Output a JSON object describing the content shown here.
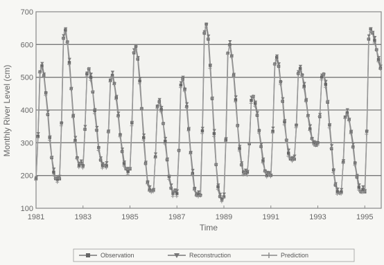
{
  "chart_data": {
    "type": "line",
    "xlabel": "Time",
    "ylabel": "Monthly River Level (cm)",
    "xlim": [
      1981,
      1995.7
    ],
    "ylim": [
      100,
      700
    ],
    "x_ticks": [
      "1981",
      "1983",
      "1985",
      "1987",
      "1989",
      "1991",
      "1993",
      "1995"
    ],
    "y_ticks": [
      "100",
      "200",
      "300",
      "400",
      "500",
      "600",
      "700"
    ],
    "grid": "horizontal",
    "legend_position": "bottom",
    "series": [
      {
        "name": "Observation",
        "marker": "square"
      },
      {
        "name": "Reconstruction",
        "marker": "triangle"
      },
      {
        "name": "Prediction",
        "marker": "plus"
      }
    ],
    "annual_cycle": [
      {
        "year": 1981,
        "peak": 540,
        "trough": 190
      },
      {
        "year": 1982,
        "peak": 650,
        "trough": 230
      },
      {
        "year": 1983,
        "peak": 530,
        "trough": 230
      },
      {
        "year": 1984,
        "peak": 510,
        "trough": 220
      },
      {
        "year": 1985,
        "peak": 600,
        "trough": 155
      },
      {
        "year": 1986,
        "peak": 430,
        "trough": 145
      },
      {
        "year": 1987,
        "peak": 500,
        "trough": 140
      },
      {
        "year": 1988,
        "peak": 670,
        "trough": 135
      },
      {
        "year": 1989,
        "peak": 605,
        "trough": 210
      },
      {
        "year": 1990,
        "peak": 445,
        "trough": 200
      },
      {
        "year": 1991,
        "peak": 565,
        "trough": 250
      },
      {
        "year": 1992,
        "peak": 530,
        "trough": 300
      },
      {
        "year": 1993,
        "peak": 515,
        "trough": 150
      },
      {
        "year": 1994,
        "peak": 395,
        "trough": 150
      },
      {
        "year": 1995,
        "peak": 650,
        "trough": 500
      }
    ]
  }
}
